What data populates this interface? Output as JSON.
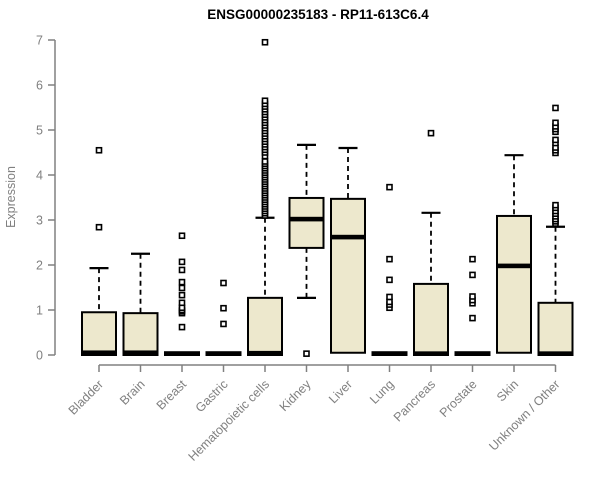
{
  "page": {
    "background_color": "#ffffff"
  },
  "chart_data": {
    "type": "boxplot",
    "title": "ENSG00000235183 - RP11-613C6.4",
    "xlabel": "",
    "ylabel": "Expression",
    "ylim": [
      0,
      7
    ],
    "yticks": [
      0,
      1,
      2,
      3,
      4,
      5,
      6,
      7
    ],
    "grid": false,
    "legend": "none",
    "style": {
      "box_fill": "#EDE8CD",
      "box_border": "#000000",
      "median_color": "#000000",
      "whisker_color": "#000000",
      "whisker_dashed": true,
      "outlier_marker": "open-square",
      "axis_color": "#808080",
      "title_color": "#000000"
    },
    "categories": [
      "Bladder",
      "Brain",
      "Breast",
      "Gastric",
      "Hematopoietic cells",
      "Kidney",
      "Liver",
      "Lung",
      "Pancreas",
      "Prostate",
      "Skin",
      "Unknown / Other"
    ],
    "series": [
      {
        "name": "Bladder",
        "q1": 0,
        "median": 0.05,
        "q3": 0.95,
        "whisker_low": 0,
        "whisker_high": 1.93,
        "outliers": [
          2.84,
          4.55
        ]
      },
      {
        "name": "Brain",
        "q1": 0,
        "median": 0.05,
        "q3": 0.93,
        "whisker_low": 0,
        "whisker_high": 2.25,
        "outliers": []
      },
      {
        "name": "Breast",
        "q1": 0,
        "median": 0.03,
        "q3": 0.06,
        "whisker_low": 0,
        "whisker_high": 0.06,
        "outliers": [
          0.62,
          0.93,
          0.97,
          1.0,
          1.05,
          1.16,
          1.33,
          1.49,
          1.62,
          1.89,
          2.07,
          2.65
        ]
      },
      {
        "name": "Gastric",
        "q1": 0,
        "median": 0.03,
        "q3": 0.06,
        "whisker_low": 0,
        "whisker_high": 0.06,
        "outliers": [
          0.69,
          1.04,
          1.6
        ]
      },
      {
        "name": "Hematopoietic cells",
        "q1": 0,
        "median": 0.04,
        "q3": 1.27,
        "whisker_low": 0,
        "whisker_high": 3.05,
        "outliers": [
          3.1,
          3.15,
          3.2,
          3.25,
          3.3,
          3.35,
          3.4,
          3.45,
          3.5,
          3.55,
          3.6,
          3.65,
          3.7,
          3.75,
          3.8,
          3.85,
          3.9,
          3.95,
          4.0,
          4.05,
          4.1,
          4.15,
          4.2,
          4.25,
          4.3,
          4.42,
          4.5,
          4.56,
          4.62,
          4.68,
          4.74,
          4.8,
          4.86,
          4.92,
          4.98,
          5.04,
          5.1,
          5.16,
          5.22,
          5.28,
          5.34,
          5.4,
          5.46,
          5.52,
          5.58,
          5.65,
          6.95
        ]
      },
      {
        "name": "Kidney",
        "q1": 2.38,
        "median": 3.02,
        "q3": 3.49,
        "whisker_low": 1.27,
        "whisker_high": 4.67,
        "outliers": [
          0.03
        ]
      },
      {
        "name": "Liver",
        "q1": 0.05,
        "median": 2.62,
        "q3": 3.47,
        "whisker_low": 0.05,
        "whisker_high": 4.6,
        "outliers": []
      },
      {
        "name": "Lung",
        "q1": 0,
        "median": 0.03,
        "q3": 0.06,
        "whisker_low": 0,
        "whisker_high": 0.06,
        "outliers": [
          1.05,
          1.12,
          1.18,
          1.29,
          1.67,
          2.13,
          3.73
        ]
      },
      {
        "name": "Pancreas",
        "q1": 0,
        "median": 0.03,
        "q3": 1.58,
        "whisker_low": 0,
        "whisker_high": 3.16,
        "outliers": [
          4.93
        ]
      },
      {
        "name": "Prostate",
        "q1": 0,
        "median": 0.03,
        "q3": 0.06,
        "whisker_low": 0,
        "whisker_high": 0.06,
        "outliers": [
          0.82,
          1.15,
          1.22,
          1.3,
          1.78,
          2.13
        ]
      },
      {
        "name": "Skin",
        "q1": 0.05,
        "median": 1.98,
        "q3": 3.09,
        "whisker_low": 0.05,
        "whisker_high": 4.44,
        "outliers": []
      },
      {
        "name": "Unknown / Other",
        "q1": 0,
        "median": 0.03,
        "q3": 1.16,
        "whisker_low": 0,
        "whisker_high": 2.85,
        "outliers": [
          2.92,
          2.97,
          3.02,
          3.08,
          3.14,
          3.2,
          3.27,
          3.33,
          4.49,
          4.55,
          4.61,
          4.71,
          4.78,
          4.96,
          5.02,
          5.08,
          5.16,
          5.49
        ]
      }
    ]
  }
}
